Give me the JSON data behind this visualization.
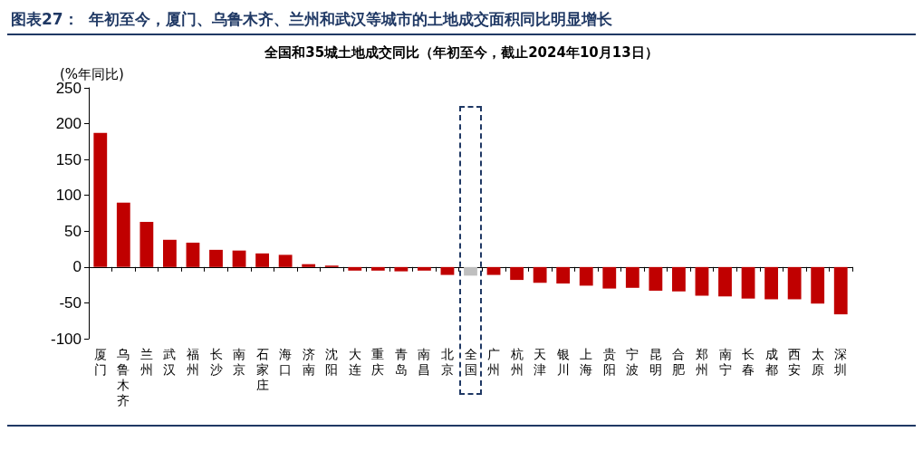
{
  "chart_data": {
    "type": "bar",
    "title": "图表27：  年初至今，厦门、乌鲁木齐、兰州和武汉等城市的土地成交面积同比明显增长",
    "subtitle": "全国和35城土地成交同比（年初至今，截止2024年10月13日）",
    "ylabel": "(%年同比)",
    "categories": [
      "厦门",
      "乌鲁木齐",
      "兰州",
      "武汉",
      "福州",
      "长沙",
      "南京",
      "石家庄",
      "海口",
      "济南",
      "沈阳",
      "大连",
      "重庆",
      "青岛",
      "南昌",
      "北京",
      "全国",
      "广州",
      "杭州",
      "天津",
      "银川",
      "上海",
      "贵阳",
      "宁波",
      "昆明",
      "合肥",
      "郑州",
      "南宁",
      "长春",
      "成都",
      "西安",
      "太原",
      "深圳"
    ],
    "values": [
      187,
      90,
      63,
      38,
      34,
      24,
      23,
      19,
      17,
      4,
      2,
      -5,
      -5,
      -6,
      -5,
      -11,
      -12,
      -11,
      -18,
      -22,
      -23,
      -26,
      -30,
      -29,
      -33,
      -34,
      -40,
      -41,
      -44,
      -45,
      -45,
      -51,
      -66
    ],
    "colors": [
      "#c00000",
      "#c00000",
      "#c00000",
      "#c00000",
      "#c00000",
      "#c00000",
      "#c00000",
      "#c00000",
      "#c00000",
      "#c00000",
      "#c00000",
      "#c00000",
      "#c00000",
      "#c00000",
      "#c00000",
      "#c00000",
      "#bfbfbf",
      "#c00000",
      "#c00000",
      "#c00000",
      "#c00000",
      "#c00000",
      "#c00000",
      "#c00000",
      "#c00000",
      "#c00000",
      "#c00000",
      "#c00000",
      "#c00000",
      "#c00000",
      "#c00000",
      "#c00000",
      "#c00000"
    ],
    "ylim": [
      -100,
      250
    ],
    "yticks": [
      -100,
      -50,
      0,
      50,
      100,
      150,
      200,
      250
    ]
  }
}
